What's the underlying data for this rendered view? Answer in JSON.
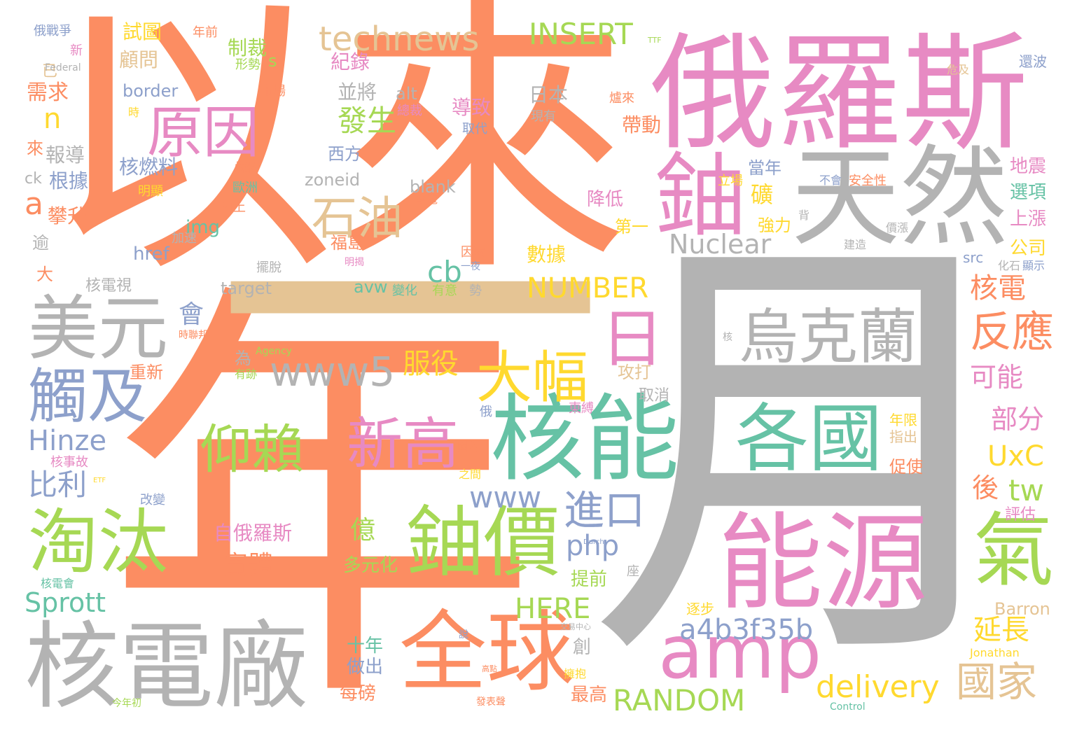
{
  "palette": {
    "orange": "#fc8d62",
    "gray": "#b3b3b3",
    "pink": "#e78ac3",
    "green": "#66c2a5",
    "lime": "#a6d854",
    "blue": "#8da0cb",
    "tan": "#e5c494",
    "yellow": "#ffd92f"
  },
  "words": [
    {
      "text": "以來",
      "color": "#fc8d62"
    },
    {
      "text": "年",
      "color": "#fc8d62"
    },
    {
      "text": "月",
      "color": "#b3b3b3"
    },
    {
      "text": "一",
      "color": "#e5c494"
    },
    {
      "text": "俄羅斯",
      "color": "#e78ac3"
    },
    {
      "text": "天然",
      "color": "#b3b3b3"
    },
    {
      "text": "鈾",
      "color": "#e78ac3"
    },
    {
      "text": "能源",
      "color": "#e78ac3"
    },
    {
      "text": "核能",
      "color": "#66c2a5"
    },
    {
      "text": "核電廠",
      "color": "#b3b3b3"
    },
    {
      "text": "全球",
      "color": "#fc8d62"
    },
    {
      "text": "amp",
      "color": "#e78ac3"
    },
    {
      "text": "鈾價",
      "color": "#a6d854"
    },
    {
      "text": "各國",
      "color": "#66c2a5"
    },
    {
      "text": "氣",
      "color": "#a6d854"
    },
    {
      "text": "烏克蘭",
      "color": "#b3b3b3"
    },
    {
      "text": "美元",
      "color": "#b3b3b3"
    },
    {
      "text": "淘汰",
      "color": "#a6d854"
    },
    {
      "text": "觸及",
      "color": "#8da0cb"
    },
    {
      "text": "原因",
      "color": "#e78ac3"
    },
    {
      "text": "石油",
      "color": "#e5c494"
    },
    {
      "text": "日",
      "color": "#e78ac3"
    },
    {
      "text": "大幅",
      "color": "#ffd92f"
    },
    {
      "text": "新高",
      "color": "#e78ac3"
    },
    {
      "text": "仰賴",
      "color": "#a6d854"
    },
    {
      "text": "www5",
      "color": "#b3b3b3"
    },
    {
      "text": "technews",
      "color": "#e5c494"
    },
    {
      "text": "INSERT",
      "color": "#a6d854"
    },
    {
      "text": "進口",
      "color": "#8da0cb"
    },
    {
      "text": "反應",
      "color": "#fc8d62"
    },
    {
      "text": "國家",
      "color": "#e5c494"
    },
    {
      "text": "a4b3f35b",
      "color": "#8da0cb"
    },
    {
      "text": "RANDOM",
      "color": "#a6d854"
    },
    {
      "text": "delivery",
      "color": "#ffd92f"
    },
    {
      "text": "NUMBER",
      "color": "#ffd92f"
    },
    {
      "text": "Nuclear",
      "color": "#b3b3b3"
    },
    {
      "text": "Hinze",
      "color": "#8da0cb"
    },
    {
      "text": "Sprott",
      "color": "#66c2a5"
    },
    {
      "text": "HERE",
      "color": "#a6d854"
    },
    {
      "text": "www",
      "color": "#8da0cb"
    },
    {
      "text": "php",
      "color": "#8da0cb"
    },
    {
      "text": "cb",
      "color": "#66c2a5"
    },
    {
      "text": "tw",
      "color": "#a6d854"
    },
    {
      "text": "UxC",
      "color": "#ffd92f"
    },
    {
      "text": "服役",
      "color": "#ffd92f"
    },
    {
      "text": "發生",
      "color": "#a6d854"
    },
    {
      "text": "比利",
      "color": "#8da0cb"
    },
    {
      "text": "核電",
      "color": "#fc8d62"
    },
    {
      "text": "可能",
      "color": "#e78ac3"
    },
    {
      "text": "部分",
      "color": "#e78ac3"
    },
    {
      "text": "延長",
      "color": "#ffd92f"
    },
    {
      "text": "後",
      "color": "#fc8d62"
    },
    {
      "text": "實體",
      "color": "#fc8d62"
    },
    {
      "text": "億",
      "color": "#a6d854"
    },
    {
      "text": "自俄羅斯",
      "color": "#e78ac3"
    },
    {
      "text": "會",
      "color": "#8da0cb"
    },
    {
      "text": "a",
      "color": "#fc8d62"
    },
    {
      "text": "n",
      "color": "#ffd92f"
    },
    {
      "text": "需求",
      "color": "#fc8d62"
    },
    {
      "text": "顧問",
      "color": "#e5c494"
    },
    {
      "text": "試圖",
      "color": "#ffd92f"
    },
    {
      "text": "制裁",
      "color": "#a6d854"
    },
    {
      "text": "紀錄",
      "color": "#e78ac3"
    },
    {
      "text": "並將",
      "color": "#b3b3b3"
    },
    {
      "text": "導致",
      "color": "#e78ac3"
    },
    {
      "text": "日本",
      "color": "#b3b3b3"
    },
    {
      "text": "帶動",
      "color": "#fc8d62"
    },
    {
      "text": "核燃料",
      "color": "#8da0cb"
    },
    {
      "text": "根據",
      "color": "#8da0cb"
    },
    {
      "text": "攀升",
      "color": "#fc8d62"
    },
    {
      "text": "報導",
      "color": "#b3b3b3"
    },
    {
      "text": "西方",
      "color": "#8da0cb"
    },
    {
      "text": "zoneid",
      "color": "#b3b3b3"
    },
    {
      "text": "blank",
      "color": "#b3b3b3"
    },
    {
      "text": "礦",
      "color": "#ffd92f"
    },
    {
      "text": "當年",
      "color": "#8da0cb"
    },
    {
      "text": "降低",
      "color": "#e78ac3"
    },
    {
      "text": "強力",
      "color": "#ffd92f"
    },
    {
      "text": "第一",
      "color": "#ffd92f"
    },
    {
      "text": "數據",
      "color": "#ffd92f"
    },
    {
      "text": "福島",
      "color": "#fc8d62"
    },
    {
      "text": "img",
      "color": "#66c2a5"
    },
    {
      "text": "href",
      "color": "#8da0cb"
    },
    {
      "text": "target",
      "color": "#b3b3b3"
    },
    {
      "text": "avw",
      "color": "#66c2a5"
    },
    {
      "text": "border",
      "color": "#8da0cb"
    },
    {
      "text": "alt",
      "color": "#b3b3b3"
    },
    {
      "text": "地震",
      "color": "#e78ac3"
    },
    {
      "text": "選項",
      "color": "#66c2a5"
    },
    {
      "text": "上漲",
      "color": "#e78ac3"
    },
    {
      "text": "公司",
      "color": "#ffd92f"
    },
    {
      "text": "攻打",
      "color": "#e5c494"
    },
    {
      "text": "取消",
      "color": "#b3b3b3"
    },
    {
      "text": "提前",
      "color": "#a6d854"
    },
    {
      "text": "多元化",
      "color": "#a6d854"
    },
    {
      "text": "十年",
      "color": "#66c2a5"
    },
    {
      "text": "做出",
      "color": "#8da0cb"
    },
    {
      "text": "每磅",
      "color": "#fc8d62"
    },
    {
      "text": "最高",
      "color": "#fc8d62"
    },
    {
      "text": "創",
      "color": "#b3b3b3"
    },
    {
      "text": "核電視",
      "color": "#b3b3b3"
    },
    {
      "text": "重新",
      "color": "#fc8d62"
    },
    {
      "text": "為",
      "color": "#b3b3b3"
    },
    {
      "text": "逾",
      "color": "#b3b3b3"
    },
    {
      "text": "大",
      "color": "#fc8d62"
    },
    {
      "text": "來",
      "color": "#fc8d62"
    },
    {
      "text": "已",
      "color": "#e5c494"
    },
    {
      "text": "ck",
      "color": "#b3b3b3"
    },
    {
      "text": "s",
      "color": "#a6d854"
    },
    {
      "text": "Barron",
      "color": "#e5c494"
    },
    {
      "text": "Jonathan",
      "color": "#ffd92f"
    },
    {
      "text": "評估",
      "color": "#e78ac3"
    },
    {
      "text": "促使",
      "color": "#fc8d62"
    },
    {
      "text": "年限",
      "color": "#ffd92f"
    },
    {
      "text": "指出",
      "color": "#e5c494"
    },
    {
      "text": "逐步",
      "color": "#ffd92f"
    },
    {
      "text": "src",
      "color": "#8da0cb"
    },
    {
      "text": "化石",
      "color": "#b3b3b3"
    },
    {
      "text": "顯示",
      "color": "#8da0cb"
    },
    {
      "text": "安全性",
      "color": "#fc8d62"
    },
    {
      "text": "不會",
      "color": "#8da0cb"
    },
    {
      "text": "立場",
      "color": "#ffd92f"
    },
    {
      "text": "價漲",
      "color": "#b3b3b3"
    },
    {
      "text": "建造",
      "color": "#b3b3b3"
    },
    {
      "text": "還波",
      "color": "#8da0cb"
    },
    {
      "text": "危及",
      "color": "#e5c494"
    },
    {
      "text": "爐來",
      "color": "#fc8d62"
    },
    {
      "text": "現有",
      "color": "#b3b3b3"
    },
    {
      "text": "取代",
      "color": "#8da0cb"
    },
    {
      "text": "總裁",
      "color": "#e78ac3"
    },
    {
      "text": "市場",
      "color": "#fc8d62"
    },
    {
      "text": "形勢",
      "color": "#a6d854"
    },
    {
      "text": "新",
      "color": "#e78ac3"
    },
    {
      "text": "年前",
      "color": "#fc8d62"
    },
    {
      "text": "俄戰爭",
      "color": "#8da0cb"
    },
    {
      "text": "Federal",
      "color": "#b3b3b3"
    },
    {
      "text": "時",
      "color": "#ffd92f"
    },
    {
      "text": "明顯",
      "color": "#ffd92f"
    },
    {
      "text": "燃料",
      "color": "#fc8d62"
    },
    {
      "text": "歐洲",
      "color": "#66c2a5"
    },
    {
      "text": "加上",
      "color": "#fc8d62"
    },
    {
      "text": "加速",
      "color": "#b3b3b3"
    },
    {
      "text": "擺脫",
      "color": "#b3b3b3"
    },
    {
      "text": "因素",
      "color": "#fc8d62"
    },
    {
      "text": "一夜",
      "color": "#8da0cb"
    },
    {
      "text": "明揭",
      "color": "#e78ac3"
    },
    {
      "text": "變化",
      "color": "#66c2a5"
    },
    {
      "text": "有意",
      "color": "#a6d854"
    },
    {
      "text": "勢",
      "color": "#b3b3b3"
    },
    {
      "text": "發電",
      "color": "#fc8d62"
    },
    {
      "text": "背",
      "color": "#b3b3b3"
    },
    {
      "text": "東縛",
      "color": "#e78ac3"
    },
    {
      "text": "國內",
      "color": "#fc8d62"
    },
    {
      "text": "之間",
      "color": "#ffd92f"
    },
    {
      "text": "俄",
      "color": "#8da0cb"
    },
    {
      "text": "核事故",
      "color": "#e78ac3"
    },
    {
      "text": "改變",
      "color": "#8da0cb"
    },
    {
      "text": "核電會",
      "color": "#66c2a5"
    },
    {
      "text": "座",
      "color": "#b3b3b3"
    },
    {
      "text": "擁抱",
      "color": "#ffd92f"
    },
    {
      "text": "發表聲",
      "color": "#fc8d62"
    },
    {
      "text": "今年初",
      "color": "#a6d854"
    },
    {
      "text": "說",
      "color": "#8da0cb"
    },
    {
      "text": "時聯邦",
      "color": "#fc8d62"
    },
    {
      "text": "有跡",
      "color": "#a6d854"
    },
    {
      "text": "Agency",
      "color": "#a6d854"
    },
    {
      "text": "核",
      "color": "#b3b3b3"
    },
    {
      "text": "Control",
      "color": "#66c2a5"
    },
    {
      "text": "TTF",
      "color": "#a6d854"
    },
    {
      "text": "ETF",
      "color": "#ffd92f"
    },
    {
      "text": "Durch",
      "color": "#8da0cb"
    },
    {
      "text": "交易中心",
      "color": "#b3b3b3"
    },
    {
      "text": "高點",
      "color": "#fc8d62"
    }
  ]
}
